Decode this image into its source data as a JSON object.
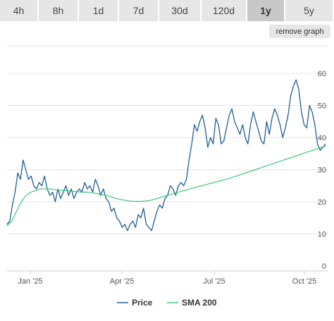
{
  "range_tabs": [
    {
      "label": "4h",
      "active": false
    },
    {
      "label": "8h",
      "active": false
    },
    {
      "label": "1d",
      "active": false
    },
    {
      "label": "7d",
      "active": false
    },
    {
      "label": "30d",
      "active": false
    },
    {
      "label": "120d",
      "active": false
    },
    {
      "label": "1y",
      "active": true
    },
    {
      "label": "5y",
      "active": false
    }
  ],
  "remove_graph_label": "remove graph",
  "colors": {
    "price": "#1f5f96",
    "sma": "#3fc77a",
    "grid": "#e6e6e6",
    "tab_bg": "#e6e6e6",
    "tab_active_bg": "#c8c8c8"
  },
  "chart_data": {
    "type": "line",
    "y_ticks": [
      0,
      10,
      20,
      30,
      40,
      50,
      60
    ],
    "ylim": [
      0,
      60
    ],
    "x_ticks": [
      "Jan '25",
      "Apr '25",
      "Jul '25",
      "Oct '25"
    ],
    "grid": true,
    "legend_position": "bottom-center",
    "series": [
      {
        "name": "Price",
        "values": [
          13,
          14,
          19,
          23,
          29,
          27,
          33,
          30,
          27,
          28,
          25,
          24,
          26,
          25,
          28,
          24,
          22,
          23,
          20,
          24,
          21,
          23,
          25,
          22,
          24,
          21,
          23,
          24,
          23,
          26,
          24,
          25,
          23,
          27,
          25,
          22,
          24,
          21,
          20,
          17,
          18,
          15,
          14,
          12,
          13,
          11,
          13,
          14,
          12,
          16,
          15,
          18,
          13,
          12,
          11,
          14,
          17,
          19,
          18,
          21,
          22,
          25,
          24,
          22,
          25,
          26,
          25,
          27,
          33,
          38,
          44,
          42,
          45,
          47,
          43,
          37,
          40,
          38,
          46,
          44,
          38,
          39,
          43,
          47,
          49,
          45,
          43,
          41,
          44,
          40,
          38,
          44,
          48,
          45,
          42,
          39,
          38,
          45,
          41,
          46,
          49,
          47,
          44,
          40,
          43,
          47,
          53,
          56,
          58,
          55,
          48,
          44,
          43,
          50,
          48,
          44,
          38,
          36,
          37,
          38
        ],
        "smoothness": "jagged"
      },
      {
        "name": "SMA 200",
        "values": [
          12.5,
          14,
          17,
          20,
          22,
          23,
          23.5,
          24,
          24,
          24,
          23.8,
          23.6,
          23.5,
          23.4,
          23.2,
          23.1,
          23,
          23,
          22.8,
          22.5,
          22.2,
          22,
          21.5,
          21,
          20.7,
          20.4,
          20.2,
          20.1,
          20.1,
          20.2,
          20.4,
          20.8,
          21.2,
          21.7,
          22.1,
          22.6,
          23,
          23.4,
          23.8,
          24.2,
          24.6,
          25,
          25.4,
          25.8,
          26.2,
          26.6,
          27,
          27.4,
          27.9,
          28.4,
          28.9,
          29.4,
          29.9,
          30.4,
          30.9,
          31.4,
          31.9,
          32.4,
          32.9,
          33.4,
          33.9,
          34.4,
          34.9,
          35.4,
          35.9,
          36.4,
          36.9,
          37.4
        ],
        "smoothness": "smooth"
      }
    ]
  }
}
